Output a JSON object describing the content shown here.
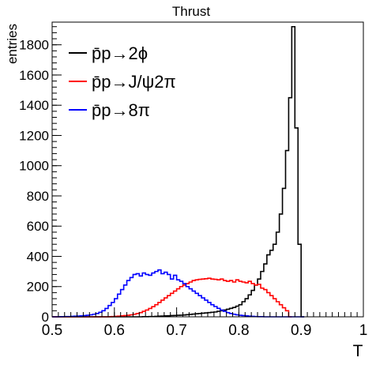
{
  "chart_data": {
    "type": "histogram",
    "title": "Thrust",
    "xlabel": "T",
    "ylabel": "entries",
    "xlim": [
      0.5,
      1.0
    ],
    "ylim": [
      0,
      1950
    ],
    "bin_width": 0.005,
    "x_start": 0.5,
    "xticks": [
      "0.5",
      "0.6",
      "0.7",
      "0.8",
      "0.9",
      "1"
    ],
    "yticks": [
      "0",
      "200",
      "400",
      "600",
      "800",
      "1000",
      "1200",
      "1400",
      "1600",
      "1800"
    ],
    "grid": false,
    "legend_position": "top-left",
    "series": [
      {
        "name": "p̄p→2ϕ",
        "color": "#000000",
        "values": [
          0,
          0,
          0,
          0,
          0,
          0,
          0,
          0,
          0,
          0,
          0,
          0,
          0,
          0,
          0,
          0,
          0,
          0,
          0,
          0,
          0,
          0,
          0,
          0,
          0,
          0,
          0,
          0,
          0,
          1,
          1,
          2,
          2,
          3,
          4,
          5,
          6,
          7,
          8,
          9,
          10,
          11,
          12,
          14,
          16,
          18,
          20,
          22,
          24,
          26,
          28,
          30,
          32,
          36,
          40,
          45,
          50,
          56,
          62,
          70,
          80,
          100,
          120,
          145,
          175,
          210,
          250,
          300,
          350,
          410,
          440,
          480,
          560,
          680,
          850,
          1100,
          1450,
          1920,
          1250,
          480,
          0
        ]
      },
      {
        "name": "p̄p→J/ψ2π",
        "color": "#ff0000",
        "values": [
          0,
          0,
          0,
          0,
          0,
          0,
          0,
          0,
          0,
          0,
          0,
          0,
          0,
          0,
          0,
          0,
          0,
          0,
          1,
          2,
          3,
          4,
          6,
          8,
          10,
          13,
          17,
          22,
          28,
          36,
          45,
          55,
          67,
          80,
          95,
          110,
          125,
          140,
          155,
          170,
          185,
          200,
          210,
          220,
          230,
          240,
          245,
          248,
          250,
          252,
          255,
          250,
          248,
          245,
          250,
          240,
          235,
          240,
          230,
          245,
          235,
          230,
          225,
          235,
          220,
          210,
          215,
          190,
          180,
          160,
          140,
          120,
          100,
          80,
          60,
          40,
          0
        ]
      },
      {
        "name": "p̄p→8π",
        "color": "#0000ff",
        "values": [
          0,
          0,
          1,
          1,
          2,
          2,
          3,
          4,
          5,
          6,
          8,
          10,
          13,
          17,
          22,
          30,
          40,
          55,
          75,
          95,
          120,
          150,
          180,
          210,
          240,
          260,
          280,
          285,
          270,
          290,
          280,
          275,
          290,
          300,
          310,
          285,
          295,
          280,
          250,
          275,
          245,
          235,
          220,
          200,
          185,
          170,
          155,
          140,
          125,
          110,
          95,
          80,
          68,
          56,
          45,
          36,
          28,
          22,
          17,
          13,
          10,
          8,
          6,
          4,
          3,
          2,
          1,
          1,
          0,
          0,
          0,
          0,
          0,
          0,
          0,
          0,
          0,
          0,
          0,
          0,
          0
        ]
      }
    ]
  }
}
